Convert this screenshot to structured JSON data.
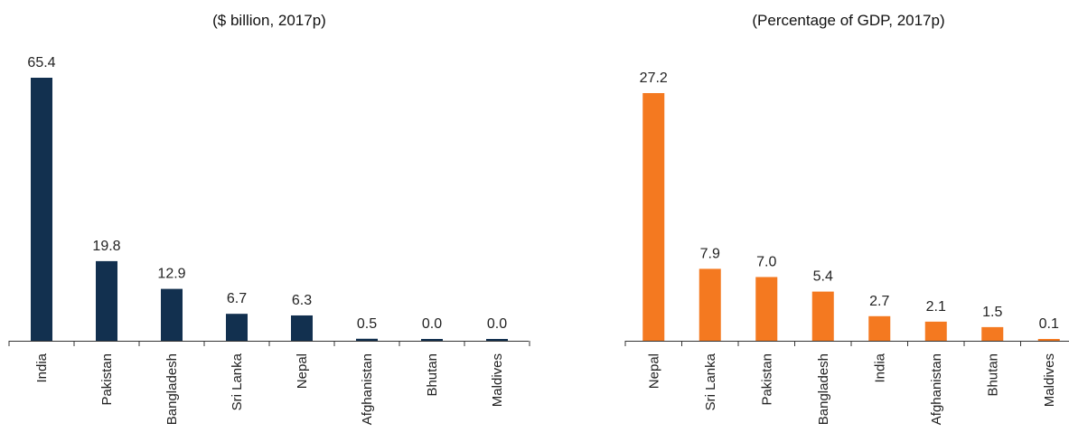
{
  "chart_data": [
    {
      "type": "bar",
      "title": "($ billion, 2017p)",
      "categories": [
        "India",
        "Pakistan",
        "Bangladesh",
        "Sri Lanka",
        "Nepal",
        "Afghanistan",
        "Bhutan",
        "Maldives"
      ],
      "values": [
        65.4,
        19.8,
        12.9,
        6.7,
        6.3,
        0.5,
        0.0,
        0.0
      ],
      "labels": [
        "65.4",
        "19.8",
        "12.9",
        "6.7",
        "6.3",
        "0.5",
        "0.0",
        "0.0"
      ],
      "ylim": [
        0,
        65.4
      ],
      "grid": false,
      "color": "#12304f"
    },
    {
      "type": "bar",
      "title": "(Percentage of GDP, 2017p)",
      "categories": [
        "Nepal",
        "Sri Lanka",
        "Pakistan",
        "Bangladesh",
        "India",
        "Afghanistan",
        "Bhutan",
        "Maldives"
      ],
      "values": [
        27.2,
        7.9,
        7.0,
        5.4,
        2.7,
        2.1,
        1.5,
        0.1
      ],
      "labels": [
        "27.2",
        "7.9",
        "7.0",
        "5.4",
        "2.7",
        "2.1",
        "1.5",
        "0.1"
      ],
      "ylim": [
        0,
        27.2
      ],
      "grid": false,
      "color": "#f47920"
    }
  ]
}
